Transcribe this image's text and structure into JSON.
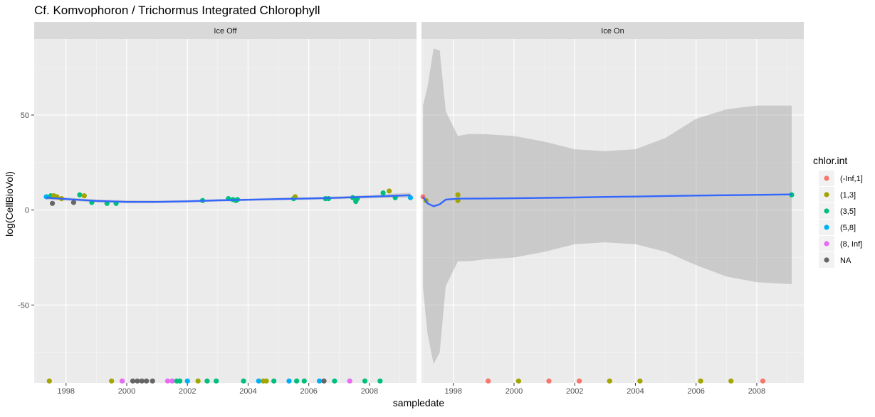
{
  "chart_data": {
    "type": "scatter",
    "title": "Cf. Komvophoron / Trichormus Integrated Chlorophyll",
    "xlabel": "sampledate",
    "ylabel": "log(CellBioVol)",
    "xlim": [
      1996.95,
      2009.55
    ],
    "ylim": [
      -91,
      90
    ],
    "x_ticks": [
      1998,
      2000,
      2002,
      2004,
      2006,
      2008
    ],
    "y_ticks": [
      -50,
      0,
      50
    ],
    "grid": true,
    "legend_position": "right",
    "legend": {
      "title": "chlor.int",
      "entries": [
        {
          "label": "(-Inf,1]",
          "color": "#F8766D"
        },
        {
          "label": "(1,3]",
          "color": "#A3A500"
        },
        {
          "label": "(3,5]",
          "color": "#00BF7D"
        },
        {
          "label": "(5,8]",
          "color": "#00B0F6"
        },
        {
          "label": "(8, Inf]",
          "color": "#E76BF3"
        },
        {
          "label": "NA",
          "color": "#666666"
        }
      ]
    },
    "smooth_color": "#3366FF",
    "ribbon_color": "#999999",
    "panels": [
      {
        "label": "Ice Off",
        "points": [
          {
            "x": 1997.35,
            "y": 7,
            "group": "(5,8]"
          },
          {
            "x": 1997.5,
            "y": 7.5,
            "group": "(3,5]"
          },
          {
            "x": 1997.55,
            "y": 3.5,
            "group": "NA"
          },
          {
            "x": 1997.6,
            "y": 7.5,
            "group": "(1,3]"
          },
          {
            "x": 1997.7,
            "y": 7,
            "group": "(1,3]"
          },
          {
            "x": 1997.85,
            "y": 6,
            "group": "(1,3]"
          },
          {
            "x": 1998.25,
            "y": 4,
            "group": "NA"
          },
          {
            "x": 1998.45,
            "y": 8,
            "group": "(3,5]"
          },
          {
            "x": 1998.6,
            "y": 7.5,
            "group": "(1,3]"
          },
          {
            "x": 1998.85,
            "y": 4,
            "group": "(3,5]"
          },
          {
            "x": 1999.35,
            "y": 3.5,
            "group": "(3,5]"
          },
          {
            "x": 1999.65,
            "y": 3.5,
            "group": "(3,5]"
          },
          {
            "x": 2002.5,
            "y": 5,
            "group": "(3,5]"
          },
          {
            "x": 2003.35,
            "y": 6,
            "group": "(3,5]"
          },
          {
            "x": 2003.5,
            "y": 5.5,
            "group": "(3,5]"
          },
          {
            "x": 2003.6,
            "y": 5,
            "group": "(3,5]"
          },
          {
            "x": 2003.65,
            "y": 5.5,
            "group": "(3,5]"
          },
          {
            "x": 2005.5,
            "y": 6,
            "group": "(3,5]"
          },
          {
            "x": 2005.55,
            "y": 7,
            "group": "(1,3]"
          },
          {
            "x": 2006.55,
            "y": 6,
            "group": "(3,5]"
          },
          {
            "x": 2006.65,
            "y": 6,
            "group": "(3,5]"
          },
          {
            "x": 2007.45,
            "y": 6.5,
            "group": "(3,5]"
          },
          {
            "x": 2007.55,
            "y": 4.5,
            "group": "(3,5]"
          },
          {
            "x": 2007.6,
            "y": 6,
            "group": "(3,5]"
          },
          {
            "x": 2008.45,
            "y": 9,
            "group": "(3,5]"
          },
          {
            "x": 2008.65,
            "y": 10,
            "group": "(1,3]"
          },
          {
            "x": 2008.85,
            "y": 6.5,
            "group": "(3,5]"
          },
          {
            "x": 2009.35,
            "y": 6.5,
            "group": "(5,8]"
          },
          {
            "x": 1997.45,
            "y": -90,
            "group": "(1,3]"
          },
          {
            "x": 1999.5,
            "y": -90,
            "group": "(1,3]"
          },
          {
            "x": 1999.85,
            "y": -90,
            "group": "(8, Inf]"
          },
          {
            "x": 2000.2,
            "y": -90,
            "group": "NA"
          },
          {
            "x": 2000.35,
            "y": -90,
            "group": "NA"
          },
          {
            "x": 2000.5,
            "y": -90,
            "group": "NA"
          },
          {
            "x": 2000.65,
            "y": -90,
            "group": "NA"
          },
          {
            "x": 2000.85,
            "y": -90,
            "group": "NA"
          },
          {
            "x": 2001.35,
            "y": -90,
            "group": "(8, Inf]"
          },
          {
            "x": 2001.5,
            "y": -90,
            "group": "(8, Inf]"
          },
          {
            "x": 2001.65,
            "y": -90,
            "group": "(3,5]"
          },
          {
            "x": 2001.75,
            "y": -90,
            "group": "(3,5]"
          },
          {
            "x": 2002.0,
            "y": -90,
            "group": "(5,8]"
          },
          {
            "x": 2002.35,
            "y": -90,
            "group": "(1,3]"
          },
          {
            "x": 2002.65,
            "y": -90,
            "group": "(3,5]"
          },
          {
            "x": 2002.95,
            "y": -90,
            "group": "(3,5]"
          },
          {
            "x": 2003.85,
            "y": -90,
            "group": "(3,5]"
          },
          {
            "x": 2004.35,
            "y": -90,
            "group": "(5,8]"
          },
          {
            "x": 2004.5,
            "y": -90,
            "group": "(1,3]"
          },
          {
            "x": 2004.6,
            "y": -90,
            "group": "(1,3]"
          },
          {
            "x": 2004.85,
            "y": -90,
            "group": "(3,5]"
          },
          {
            "x": 2005.35,
            "y": -90,
            "group": "(5,8]"
          },
          {
            "x": 2005.6,
            "y": -90,
            "group": "(3,5]"
          },
          {
            "x": 2005.85,
            "y": -90,
            "group": "(3,5]"
          },
          {
            "x": 2006.35,
            "y": -90,
            "group": "(5,8]"
          },
          {
            "x": 2006.5,
            "y": -90,
            "group": "NA"
          },
          {
            "x": 2006.85,
            "y": -90,
            "group": "(3,5]"
          },
          {
            "x": 2007.35,
            "y": -90,
            "group": "(8, Inf]"
          },
          {
            "x": 2007.85,
            "y": -90,
            "group": "(3,5]"
          },
          {
            "x": 2008.35,
            "y": -90,
            "group": "(3,5]"
          }
        ],
        "smooth": {
          "x": [
            1997.35,
            1998.0,
            1999.0,
            2000.0,
            2001.0,
            2002.0,
            2003.0,
            2004.0,
            2005.0,
            2006.0,
            2007.0,
            2008.0,
            2009.35
          ],
          "y": [
            6.5,
            5.8,
            4.8,
            4.3,
            4.3,
            4.6,
            5.1,
            5.4,
            5.8,
            6.1,
            6.5,
            7.0,
            7.8
          ],
          "lower": [
            5.3,
            5.0,
            4.0,
            3.5,
            3.6,
            4.0,
            4.5,
            4.8,
            5.1,
            5.4,
            5.8,
            6.2,
            6.5
          ],
          "upper": [
            7.7,
            6.6,
            5.6,
            5.1,
            5.0,
            5.2,
            5.7,
            6.0,
            6.5,
            6.8,
            7.2,
            7.8,
            9.1
          ]
        }
      },
      {
        "label": "Ice On",
        "points": [
          {
            "x": 1997.0,
            "y": 7,
            "group": "(-Inf,1]"
          },
          {
            "x": 1997.1,
            "y": 5,
            "group": "(1,3]"
          },
          {
            "x": 1998.15,
            "y": 8,
            "group": "(1,3]"
          },
          {
            "x": 1998.15,
            "y": 5,
            "group": "(1,3]"
          },
          {
            "x": 2009.15,
            "y": 8,
            "group": "(3,5]"
          },
          {
            "x": 1999.15,
            "y": -90,
            "group": "(-Inf,1]"
          },
          {
            "x": 2000.15,
            "y": -90,
            "group": "(1,3]"
          },
          {
            "x": 2001.15,
            "y": -90,
            "group": "(-Inf,1]"
          },
          {
            "x": 2002.15,
            "y": -90,
            "group": "(-Inf,1]"
          },
          {
            "x": 2003.15,
            "y": -90,
            "group": "(1,3]"
          },
          {
            "x": 2004.15,
            "y": -90,
            "group": "(1,3]"
          },
          {
            "x": 2006.15,
            "y": -90,
            "group": "(1,3]"
          },
          {
            "x": 2007.15,
            "y": -90,
            "group": "(1,3]"
          },
          {
            "x": 2008.2,
            "y": -90,
            "group": "(-Inf,1]"
          }
        ],
        "smooth": {
          "x": [
            1997.0,
            1997.15,
            1997.35,
            1997.55,
            1997.75,
            1998.15,
            1998.5,
            1999.0,
            2000.0,
            2001.0,
            2002.0,
            2003.0,
            2004.0,
            2005.0,
            2006.0,
            2007.0,
            2008.0,
            2009.15
          ],
          "y": [
            7,
            3.5,
            2.0,
            3.0,
            5.5,
            6.0,
            6.0,
            6.1,
            6.2,
            6.4,
            6.6,
            6.9,
            7.1,
            7.4,
            7.6,
            7.8,
            8.0,
            8.2
          ],
          "lower": [
            -41,
            -65,
            -81,
            -75,
            -40,
            -27,
            -27,
            -26,
            -25,
            -22,
            -18,
            -17,
            -18,
            -22,
            -29,
            -35,
            -38,
            -39
          ],
          "upper": [
            55,
            65,
            85,
            84,
            52,
            39,
            40,
            40,
            39,
            36,
            32,
            31,
            32,
            38,
            48,
            53,
            55,
            55
          ]
        }
      }
    ]
  }
}
